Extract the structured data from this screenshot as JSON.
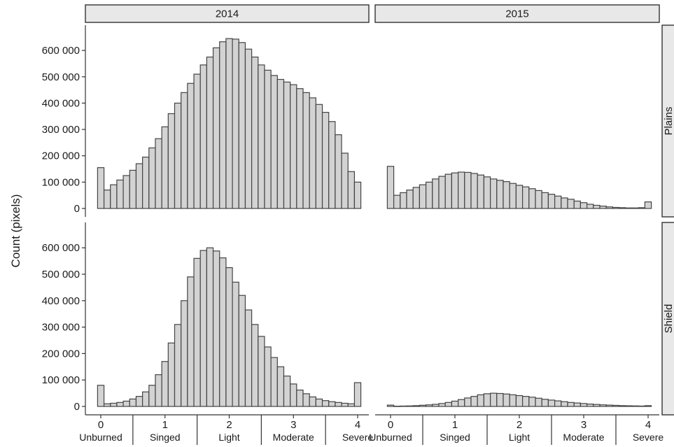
{
  "chart_data": {
    "type": "bar",
    "ylabel": "Count (pixels)",
    "xlabel": "",
    "columns": [
      "2014",
      "2015"
    ],
    "rows": [
      "Plains",
      "Shield"
    ],
    "xlim": [
      0,
      4
    ],
    "ylim": [
      0,
      680000
    ],
    "x_ticks": [
      0,
      1,
      2,
      3,
      4
    ],
    "x_tick_labels": [
      "0",
      "1",
      "2",
      "3",
      "4"
    ],
    "y_ticks": [
      0,
      100000,
      200000,
      300000,
      400000,
      500000,
      600000
    ],
    "y_tick_labels": [
      "0",
      "100 000",
      "200 000",
      "300 000",
      "400 000",
      "500 000",
      "600 000"
    ],
    "severity_classes": [
      {
        "label": "Unburned",
        "center": 0
      },
      {
        "label": "Singed",
        "center": 1
      },
      {
        "label": "Light",
        "center": 2
      },
      {
        "label": "Moderate",
        "center": 3
      },
      {
        "label": "Severe",
        "center": 4
      }
    ],
    "class_boundaries": [
      0.5,
      1.5,
      2.5,
      3.5
    ],
    "bin_width": 0.1,
    "bin_centers": [
      0,
      0.1,
      0.2,
      0.3,
      0.4,
      0.5,
      0.6,
      0.7,
      0.8,
      0.9,
      1,
      1.1,
      1.2,
      1.3,
      1.4,
      1.5,
      1.6,
      1.7,
      1.8,
      1.9,
      2,
      2.1,
      2.2,
      2.3,
      2.4,
      2.5,
      2.6,
      2.7,
      2.8,
      2.9,
      3,
      3.1,
      3.2,
      3.3,
      3.4,
      3.5,
      3.6,
      3.7,
      3.8,
      3.9,
      4
    ],
    "panels": [
      {
        "column": "2014",
        "row": "Plains",
        "values": [
          155000,
          70000,
          90000,
          108000,
          125000,
          145000,
          170000,
          195000,
          230000,
          265000,
          310000,
          360000,
          400000,
          440000,
          475000,
          510000,
          545000,
          575000,
          610000,
          633000,
          645000,
          643000,
          630000,
          605000,
          575000,
          545000,
          525000,
          505000,
          490000,
          480000,
          470000,
          455000,
          440000,
          420000,
          395000,
          365000,
          330000,
          280000,
          210000,
          140000,
          100000
        ]
      },
      {
        "column": "2015",
        "row": "Plains",
        "values": [
          160000,
          50000,
          60000,
          70000,
          80000,
          90000,
          100000,
          112000,
          122000,
          130000,
          135000,
          138000,
          137000,
          133000,
          127000,
          120000,
          112000,
          107000,
          102000,
          95000,
          88000,
          82000,
          75000,
          68000,
          60000,
          54000,
          47000,
          40000,
          35000,
          28000,
          22000,
          16000,
          12000,
          9000,
          6000,
          4000,
          3000,
          2000,
          2000,
          3000,
          25000
        ]
      },
      {
        "column": "2014",
        "row": "Shield",
        "values": [
          80000,
          10000,
          12000,
          15000,
          20000,
          28000,
          38000,
          55000,
          80000,
          120000,
          170000,
          240000,
          310000,
          400000,
          490000,
          560000,
          590000,
          600000,
          588000,
          562000,
          525000,
          470000,
          420000,
          365000,
          310000,
          265000,
          225000,
          185000,
          150000,
          115000,
          85000,
          62000,
          48000,
          36000,
          28000,
          22000,
          18000,
          15000,
          12000,
          10000,
          90000
        ]
      },
      {
        "column": "2015",
        "row": "Shield",
        "values": [
          5000,
          1000,
          1500,
          2000,
          3000,
          4500,
          6000,
          8000,
          11000,
          15000,
          20000,
          26000,
          32000,
          38000,
          44000,
          48000,
          50000,
          49000,
          47000,
          44000,
          41000,
          38000,
          35000,
          31000,
          27000,
          24000,
          21000,
          18000,
          15000,
          13000,
          11000,
          9000,
          7500,
          6000,
          5000,
          4000,
          3000,
          2500,
          2000,
          1500,
          3000
        ]
      }
    ],
    "grid": false,
    "legend": "none"
  }
}
